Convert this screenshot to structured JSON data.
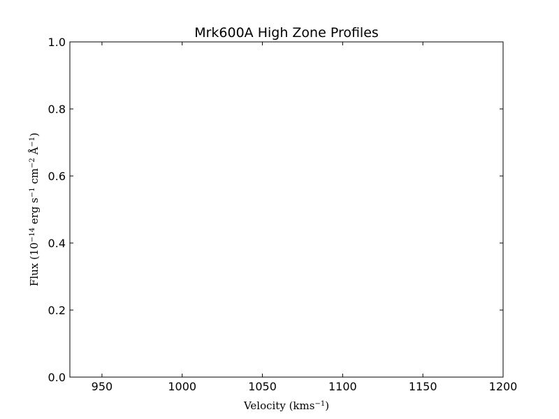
{
  "chart_data": {
    "type": "line",
    "title": "Mrk600A High Zone Profiles",
    "xlabel": {
      "parts": [
        {
          "text": "Velocity (kms",
          "sup": false
        },
        {
          "text": "−1",
          "sup": true
        },
        {
          "text": ")",
          "sup": false
        }
      ]
    },
    "ylabel": {
      "parts": [
        {
          "text": "Flux (10",
          "sup": false
        },
        {
          "text": "−14",
          "sup": true
        },
        {
          "text": " erg s",
          "sup": false
        },
        {
          "text": "−1",
          "sup": true
        },
        {
          "text": " cm",
          "sup": false
        },
        {
          "text": "−2",
          "sup": true
        },
        {
          "text": " Å",
          "sup": false
        },
        {
          "text": "−1",
          "sup": true
        },
        {
          "text": ")",
          "sup": false
        }
      ]
    },
    "xlim": [
      930,
      1200
    ],
    "ylim": [
      0.0,
      1.0
    ],
    "xticks": [
      950,
      1000,
      1050,
      1100,
      1150,
      1200
    ],
    "xtick_labels": [
      "950",
      "1000",
      "1050",
      "1100",
      "1150",
      "1200"
    ],
    "yticks": [
      0.0,
      0.2,
      0.4,
      0.6,
      0.8,
      1.0
    ],
    "ytick_labels": [
      "0.0",
      "0.2",
      "0.4",
      "0.6",
      "0.8",
      "1.0"
    ],
    "series": [],
    "grid": false,
    "colors": {
      "axes": "#000000",
      "background": "#ffffff"
    }
  }
}
